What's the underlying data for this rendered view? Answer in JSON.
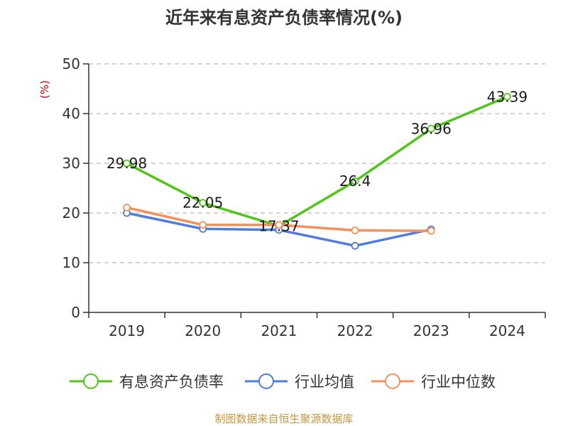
{
  "chart_data": {
    "type": "line",
    "title": "近年来有息资产负债率情况(%)",
    "ylabel": "(%)",
    "categories": [
      "2019",
      "2020",
      "2021",
      "2022",
      "2023",
      "2024"
    ],
    "ylim": [
      0,
      50
    ],
    "yticks": [
      0,
      10,
      20,
      30,
      40,
      50
    ],
    "grid": true,
    "legend_position": "bottom",
    "series": [
      {
        "name": "有息资产负债率",
        "color": "#52c41a",
        "values": [
          29.98,
          22.05,
          17.37,
          26.4,
          36.96,
          43.39
        ],
        "data_labels": [
          "29.98",
          "22.05",
          "17.37",
          "26.4",
          "36.96",
          "43.39"
        ]
      },
      {
        "name": "行业均值",
        "color": "#4e7ddb",
        "values": [
          20.0,
          16.8,
          16.6,
          13.4,
          16.7,
          null
        ]
      },
      {
        "name": "行业中位数",
        "color": "#f5905a",
        "values": [
          21.1,
          17.6,
          17.6,
          16.5,
          16.4,
          null
        ]
      }
    ]
  },
  "source": "制图数据来自恒生聚源数据库",
  "colors": {
    "ylabel": "#cc0000",
    "source": "#c8963c",
    "axis": "#333333",
    "grid": "#bbbbbb"
  }
}
